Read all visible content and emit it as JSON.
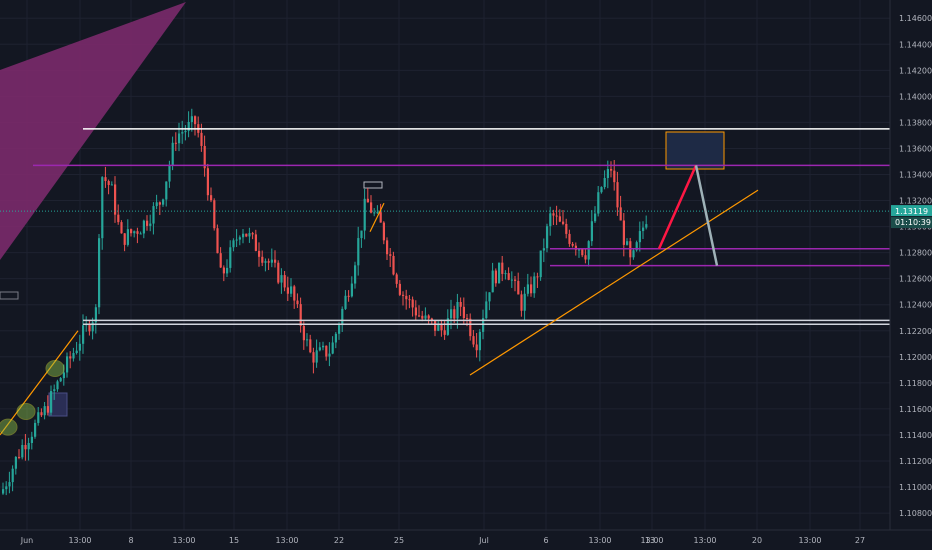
{
  "colors": {
    "background": "#131722",
    "grid": "#1e2230",
    "bull": "#26a69a",
    "bear": "#ef5350",
    "axis_text": "#b2b5be",
    "resistance": "#ffffff",
    "purple_line": "#9c27b0",
    "trend": "#ff9800",
    "current_price_bg": "#26a69a",
    "magenta_zone": "#7b2a6b"
  },
  "chart_data": {
    "type": "candlestick",
    "symbol": "",
    "y_ticks": [
      "1.14600",
      "1.14400",
      "1.14200",
      "1.14000",
      "1.13800",
      "1.13600",
      "1.13400",
      "1.13200",
      "1.13000",
      "1.12800",
      "1.12600",
      "1.12400",
      "1.12200",
      "1.12000",
      "1.11800",
      "1.11600",
      "1.11400",
      "1.11200",
      "1.11000",
      "1.10800"
    ],
    "ylim": [
      1.1067,
      1.1474
    ],
    "x_ticks": [
      "Jun",
      "13:00",
      "8",
      "13:00",
      "15",
      "13:00",
      "22",
      "25",
      "Jul",
      "13:00",
      "6",
      "13:00",
      "13",
      "13:00",
      "20",
      "13:00",
      "27"
    ],
    "current_price": "1.13119",
    "countdown": "01:10:39",
    "horizontal_levels": [
      {
        "name": "upper-resistance",
        "price": 1.1375,
        "color": "#ffffff"
      },
      {
        "name": "purple-level-top",
        "price": 1.1347,
        "color": "#9c27b0"
      },
      {
        "name": "purple-level-mid",
        "price": 1.1283,
        "color": "#9c27b0"
      },
      {
        "name": "purple-level-low",
        "price": 1.127,
        "color": "#9c27b0"
      },
      {
        "name": "support-band-top",
        "price": 1.1228,
        "color": "#d1d4dc"
      },
      {
        "name": "support-band-bottom",
        "price": 1.1225,
        "color": "#d1d4dc"
      }
    ],
    "projection": {
      "start_price": 1.1283,
      "peak_price": 1.1347,
      "end_price": 1.127
    }
  }
}
